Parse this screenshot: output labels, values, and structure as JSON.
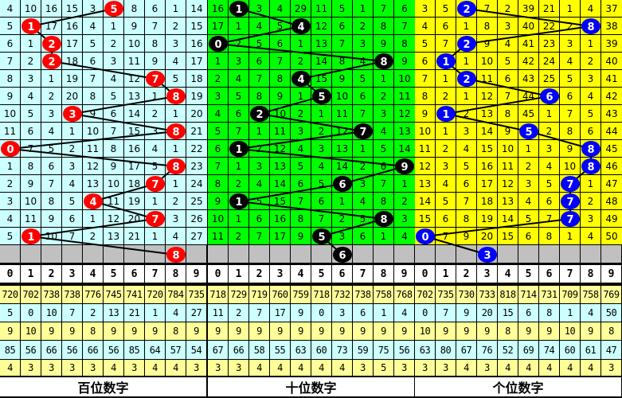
{
  "chart_data": {
    "type": "table",
    "column_headers": [
      "0",
      "1",
      "2",
      "3",
      "4",
      "5",
      "6",
      "7",
      "8",
      "9"
    ],
    "panels": [
      {
        "title": "百位数字",
        "bg_color": "#ccffff",
        "ball_color": "#ff0000",
        "draws": [
          5,
          1,
          2,
          2,
          7,
          8,
          3,
          8,
          0,
          8,
          7,
          4,
          7,
          1
        ],
        "next_ball": 8,
        "rows": [
          [
            4,
            10,
            16,
            15,
            3,
            null,
            8,
            6,
            1,
            14
          ],
          [
            5,
            null,
            17,
            16,
            4,
            1,
            9,
            7,
            2,
            15
          ],
          [
            6,
            1,
            null,
            17,
            5,
            2,
            10,
            8,
            3,
            16
          ],
          [
            7,
            2,
            null,
            18,
            6,
            3,
            11,
            9,
            4,
            17
          ],
          [
            8,
            3,
            1,
            19,
            7,
            4,
            12,
            null,
            5,
            18
          ],
          [
            9,
            4,
            2,
            20,
            8,
            5,
            13,
            1,
            null,
            19
          ],
          [
            10,
            5,
            3,
            null,
            9,
            6,
            14,
            2,
            1,
            20
          ],
          [
            11,
            6,
            4,
            1,
            10,
            7,
            15,
            3,
            null,
            21
          ],
          [
            null,
            7,
            5,
            2,
            11,
            8,
            16,
            4,
            1,
            22
          ],
          [
            1,
            8,
            6,
            3,
            12,
            9,
            17,
            5,
            null,
            23
          ],
          [
            2,
            9,
            7,
            4,
            13,
            10,
            18,
            null,
            1,
            24
          ],
          [
            3,
            10,
            8,
            5,
            null,
            11,
            19,
            1,
            2,
            25
          ],
          [
            4,
            11,
            9,
            6,
            1,
            12,
            20,
            null,
            3,
            26
          ],
          [
            5,
            null,
            10,
            7,
            2,
            13,
            21,
            1,
            4,
            27
          ]
        ],
        "stats": [
          [
            "720",
            "702",
            "738",
            "738",
            "776",
            "745",
            "741",
            "720",
            "784",
            "735"
          ],
          [
            "5",
            "0",
            "10",
            "7",
            "2",
            "13",
            "21",
            "1",
            "4",
            "27"
          ],
          [
            "9",
            "10",
            "9",
            "9",
            "8",
            "9",
            "9",
            "9",
            "8",
            "9"
          ],
          [
            "85",
            "56",
            "66",
            "56",
            "66",
            "56",
            "85",
            "64",
            "57",
            "54"
          ],
          [
            "4",
            "3",
            "3",
            "3",
            "3",
            "4",
            "3",
            "4",
            "4",
            "3"
          ]
        ]
      },
      {
        "title": "十位数字",
        "bg_color": "#00ff00",
        "ball_color": "#000000",
        "draws": [
          1,
          4,
          0,
          8,
          4,
          5,
          2,
          7,
          1,
          9,
          6,
          1,
          8,
          5
        ],
        "next_ball": 6,
        "rows": [
          [
            16,
            null,
            3,
            4,
            29,
            11,
            5,
            1,
            7,
            6
          ],
          [
            17,
            1,
            4,
            5,
            null,
            12,
            6,
            2,
            8,
            7
          ],
          [
            null,
            2,
            5,
            6,
            1,
            13,
            7,
            3,
            9,
            8
          ],
          [
            1,
            3,
            6,
            7,
            2,
            14,
            8,
            4,
            null,
            9
          ],
          [
            2,
            4,
            7,
            8,
            null,
            15,
            9,
            5,
            1,
            10
          ],
          [
            3,
            5,
            8,
            9,
            1,
            null,
            10,
            6,
            2,
            11
          ],
          [
            4,
            6,
            null,
            10,
            2,
            1,
            11,
            7,
            3,
            12
          ],
          [
            5,
            7,
            1,
            11,
            3,
            2,
            12,
            null,
            4,
            13
          ],
          [
            6,
            null,
            2,
            12,
            4,
            3,
            13,
            1,
            5,
            14
          ],
          [
            7,
            1,
            3,
            13,
            5,
            4,
            14,
            2,
            6,
            null
          ],
          [
            8,
            2,
            4,
            14,
            6,
            5,
            null,
            3,
            7,
            1
          ],
          [
            9,
            null,
            5,
            15,
            7,
            6,
            1,
            4,
            8,
            2
          ],
          [
            10,
            1,
            6,
            16,
            8,
            7,
            2,
            5,
            null,
            3
          ],
          [
            11,
            2,
            7,
            17,
            9,
            null,
            3,
            6,
            1,
            4
          ]
        ],
        "stats": [
          [
            "718",
            "729",
            "719",
            "760",
            "759",
            "718",
            "732",
            "738",
            "758",
            "768"
          ],
          [
            "11",
            "2",
            "7",
            "17",
            "9",
            "0",
            "3",
            "6",
            "1",
            "4"
          ],
          [
            "9",
            "9",
            "9",
            "9",
            "9",
            "9",
            "9",
            "9",
            "9",
            "9"
          ],
          [
            "67",
            "66",
            "58",
            "55",
            "63",
            "60",
            "73",
            "59",
            "75",
            "56"
          ],
          [
            "3",
            "3",
            "4",
            "4",
            "4",
            "4",
            "4",
            "3",
            "5",
            "3"
          ]
        ]
      },
      {
        "title": "个位数字",
        "bg_color": "#ffff00",
        "ball_color": "#0000ff",
        "draws": [
          2,
          8,
          2,
          1,
          2,
          6,
          1,
          5,
          8,
          8,
          7,
          7,
          7,
          0
        ],
        "next_ball": 3,
        "rows": [
          [
            3,
            5,
            null,
            7,
            2,
            39,
            21,
            1,
            4,
            37
          ],
          [
            4,
            6,
            1,
            8,
            3,
            40,
            22,
            2,
            null,
            38
          ],
          [
            5,
            7,
            null,
            9,
            4,
            41,
            23,
            3,
            1,
            39
          ],
          [
            6,
            null,
            1,
            10,
            5,
            42,
            24,
            4,
            2,
            40
          ],
          [
            7,
            1,
            null,
            11,
            6,
            43,
            25,
            5,
            3,
            41
          ],
          [
            8,
            2,
            1,
            12,
            7,
            44,
            null,
            6,
            4,
            42
          ],
          [
            9,
            null,
            2,
            13,
            8,
            45,
            1,
            7,
            5,
            43
          ],
          [
            10,
            1,
            3,
            14,
            9,
            null,
            2,
            8,
            6,
            44
          ],
          [
            11,
            2,
            4,
            15,
            10,
            1,
            3,
            9,
            null,
            45
          ],
          [
            12,
            3,
            5,
            16,
            11,
            2,
            4,
            10,
            null,
            46
          ],
          [
            13,
            4,
            6,
            17,
            12,
            3,
            5,
            null,
            1,
            47
          ],
          [
            14,
            5,
            7,
            18,
            13,
            4,
            6,
            null,
            2,
            48
          ],
          [
            15,
            6,
            8,
            19,
            14,
            5,
            7,
            null,
            3,
            49
          ],
          [
            null,
            7,
            9,
            20,
            15,
            6,
            8,
            1,
            4,
            50
          ]
        ],
        "stats": [
          [
            "702",
            "735",
            "730",
            "733",
            "818",
            "714",
            "731",
            "709",
            "758",
            "769"
          ],
          [
            "0",
            "7",
            "9",
            "20",
            "15",
            "6",
            "8",
            "1",
            "4",
            "50"
          ],
          [
            "10",
            "9",
            "9",
            "9",
            "8",
            "9",
            "9",
            "10",
            "9",
            "8"
          ],
          [
            "63",
            "80",
            "67",
            "76",
            "52",
            "69",
            "74",
            "60",
            "61",
            "47"
          ],
          [
            "3",
            "3",
            "4",
            "3",
            "4",
            "4",
            "4",
            "4",
            "4",
            "3"
          ]
        ]
      }
    ]
  }
}
